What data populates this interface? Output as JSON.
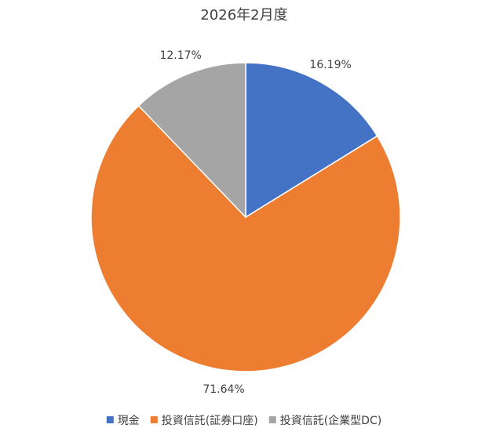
{
  "chart_data": {
    "type": "pie",
    "title": "2026年2月度",
    "categories": [
      "現金",
      "投資信託(証券口座)",
      "投資信託(企業型DC)"
    ],
    "values": [
      16.19,
      71.64,
      12.17
    ],
    "value_labels": [
      "16.19%",
      "71.64%",
      "12.17%"
    ],
    "colors": [
      "#4472c4",
      "#ed7d31",
      "#a5a5a5"
    ],
    "legend": "bottom"
  }
}
